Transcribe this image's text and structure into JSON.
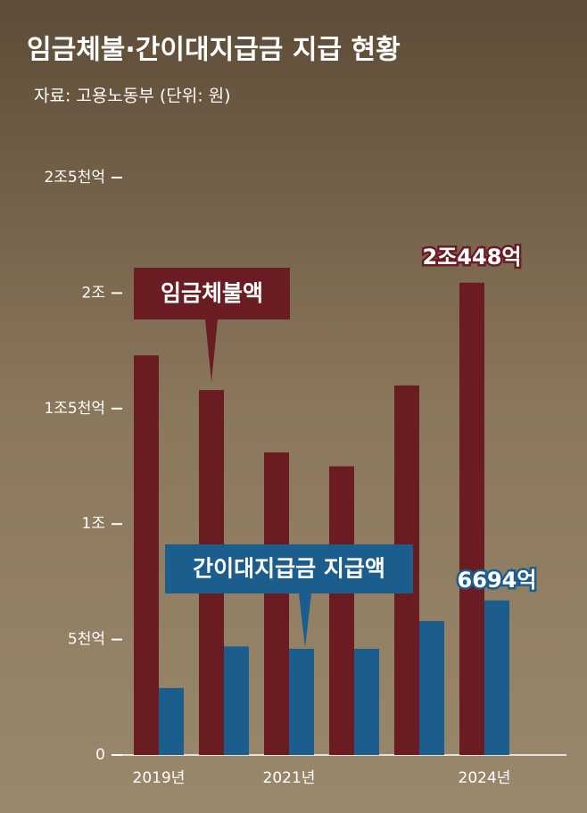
{
  "chart_data": {
    "type": "bar",
    "title": "임금체불·간이대지급금 지급 현황",
    "subtitle": "자료: 고용노동부 (단위: 원)",
    "categories": [
      "2019년",
      null,
      "2021년",
      null,
      null,
      "2024년"
    ],
    "series": [
      {
        "name": "임금체불액",
        "color": "#6a1c22",
        "values": [
          17300,
          15800,
          13100,
          12500,
          16000,
          20448
        ],
        "value_labels": [
          null,
          null,
          null,
          null,
          null,
          "2조448억"
        ]
      },
      {
        "name": "간이대지급금 지급액",
        "color": "#1b5e8e",
        "values": [
          2900,
          4700,
          4600,
          4600,
          5800,
          6694
        ],
        "value_labels": [
          null,
          null,
          null,
          null,
          null,
          "6694억"
        ]
      }
    ],
    "ylim": [
      0,
      25000
    ],
    "yticks": [
      0,
      {
        "value": 5000,
        "label": "5천억"
      },
      {
        "value": 10000,
        "label": "1조"
      },
      {
        "value": 15000,
        "label": "1조5천억"
      },
      {
        "value": 20000,
        "label": "2조"
      },
      {
        "value": 25000,
        "label": "2조5천억"
      }
    ]
  }
}
